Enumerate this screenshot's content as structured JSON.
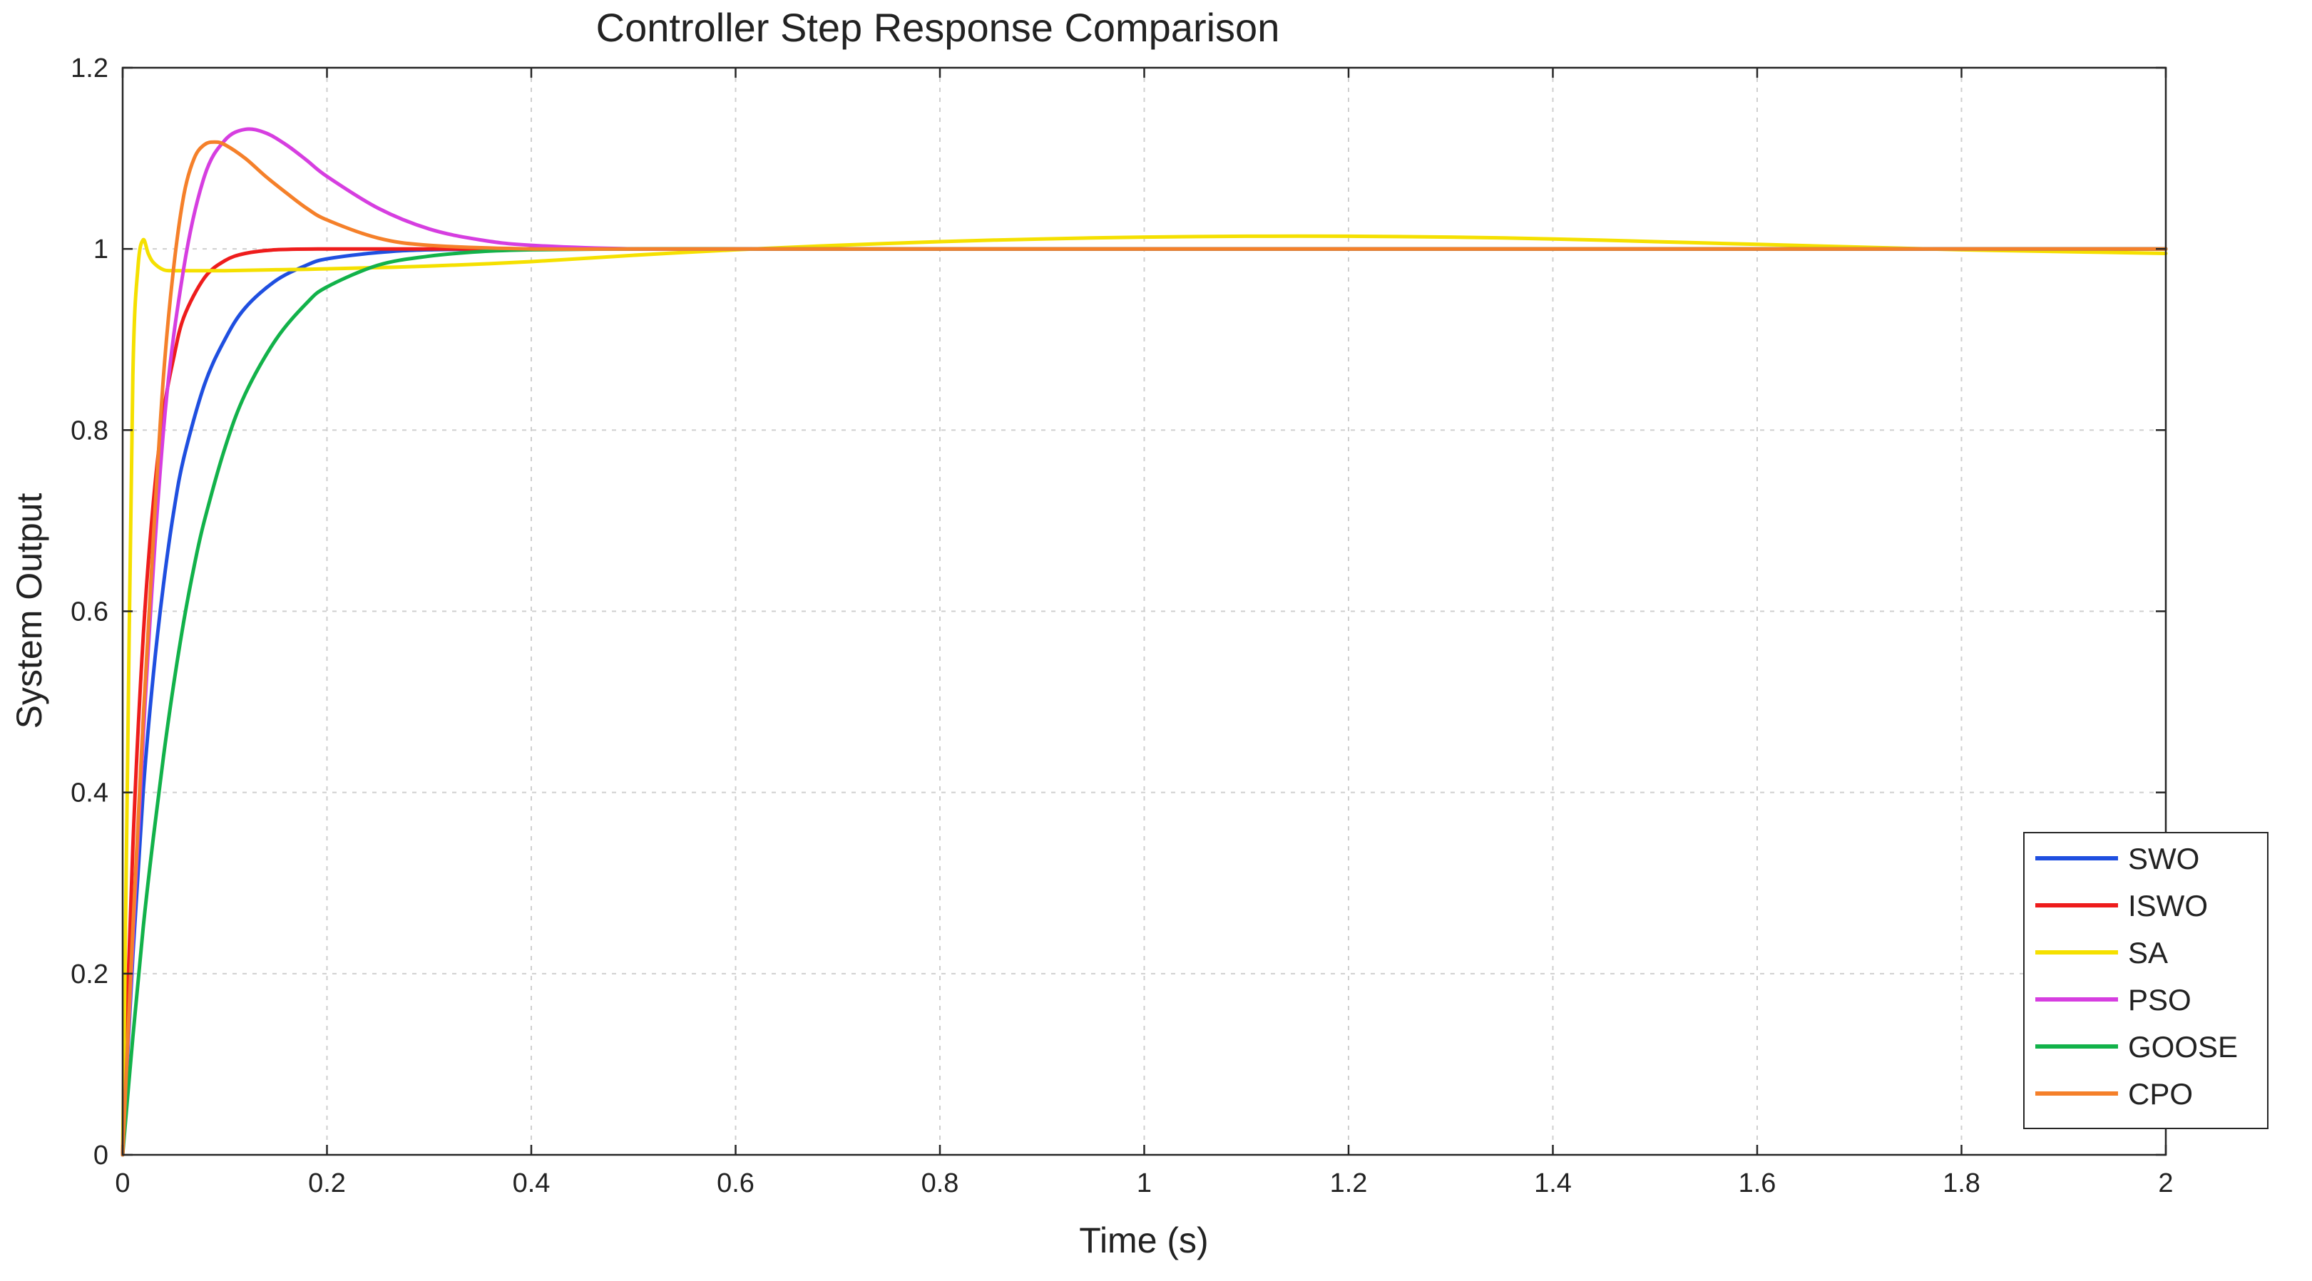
{
  "chart_data": {
    "type": "line",
    "title": "Controller Step Response Comparison",
    "xlabel": "Time (s)",
    "ylabel": "System Output",
    "xlim": [
      0,
      2
    ],
    "ylim": [
      0,
      1.2
    ],
    "xticks": [
      0,
      0.2,
      0.4,
      0.6,
      0.8,
      1,
      1.2,
      1.4,
      1.6,
      1.8,
      2
    ],
    "xtick_labels": [
      "0",
      "0.2",
      "0.4",
      "0.6",
      "0.8",
      "1",
      "1.2",
      "1.4",
      "1.6",
      "1.8",
      "2"
    ],
    "yticks": [
      0,
      0.2,
      0.4,
      0.6,
      0.8,
      1,
      1.2
    ],
    "ytick_labels": [
      "0",
      "0.2",
      "0.4",
      "0.6",
      "0.8",
      "1",
      "1.2"
    ],
    "grid": true,
    "legend_position": "bottom-right",
    "series": [
      {
        "name": "SWO",
        "color": "#1f4fe0",
        "x": [
          0,
          0.01,
          0.02,
          0.03,
          0.04,
          0.05,
          0.06,
          0.08,
          0.1,
          0.12,
          0.15,
          0.18,
          0.2,
          0.25,
          0.3,
          0.4,
          0.5,
          0.6,
          0.8,
          1.0,
          1.5,
          2.0
        ],
        "y": [
          0,
          0.22,
          0.4,
          0.53,
          0.63,
          0.71,
          0.77,
          0.85,
          0.9,
          0.935,
          0.965,
          0.982,
          0.989,
          0.996,
          0.999,
          1.0,
          1.0,
          1.0,
          1.0,
          1.0,
          1.0,
          1.0
        ]
      },
      {
        "name": "ISWO",
        "color": "#ee1c1c",
        "x": [
          0,
          0.01,
          0.02,
          0.03,
          0.04,
          0.05,
          0.06,
          0.08,
          0.1,
          0.12,
          0.15,
          0.2,
          0.25,
          0.3,
          0.5,
          1.0,
          1.5,
          2.0
        ],
        "y": [
          0,
          0.34,
          0.57,
          0.72,
          0.82,
          0.88,
          0.925,
          0.968,
          0.987,
          0.995,
          0.999,
          1.0,
          1.0,
          1.0,
          1.0,
          1.0,
          1.0,
          1.0
        ]
      },
      {
        "name": "SA",
        "color": "#f5e000",
        "x": [
          0,
          0.005,
          0.01,
          0.015,
          0.02,
          0.025,
          0.03,
          0.04,
          0.05,
          0.07,
          0.1,
          0.15,
          0.2,
          0.3,
          0.4,
          0.5,
          0.6,
          0.7,
          0.8,
          0.9,
          1.0,
          1.1,
          1.2,
          1.3,
          1.4,
          1.5,
          1.6,
          1.7,
          1.8,
          1.9,
          2.0
        ],
        "y": [
          0,
          0.45,
          0.86,
          0.98,
          1.01,
          0.995,
          0.985,
          0.977,
          0.976,
          0.976,
          0.976,
          0.977,
          0.978,
          0.981,
          0.986,
          0.993,
          0.999,
          1.004,
          1.008,
          1.011,
          1.013,
          1.014,
          1.014,
          1.013,
          1.011,
          1.008,
          1.005,
          1.002,
          0.999,
          0.997,
          0.995
        ]
      },
      {
        "name": "PSO",
        "color": "#d63ee0",
        "x": [
          0,
          0.02,
          0.04,
          0.06,
          0.08,
          0.1,
          0.12,
          0.14,
          0.16,
          0.18,
          0.2,
          0.25,
          0.3,
          0.35,
          0.4,
          0.5,
          0.6,
          0.8,
          1.0,
          1.5,
          2.0
        ],
        "y": [
          0,
          0.46,
          0.8,
          0.98,
          1.08,
          1.12,
          1.132,
          1.128,
          1.115,
          1.098,
          1.08,
          1.045,
          1.022,
          1.01,
          1.004,
          1.0,
          1.0,
          1.0,
          1.0,
          1.0,
          1.0
        ]
      },
      {
        "name": "GOOSE",
        "color": "#12b24a",
        "x": [
          0,
          0.01,
          0.02,
          0.03,
          0.04,
          0.05,
          0.06,
          0.07,
          0.08,
          0.1,
          0.12,
          0.15,
          0.18,
          0.2,
          0.25,
          0.3,
          0.35,
          0.4,
          0.5,
          0.6,
          0.8,
          1.0,
          1.5,
          2.0
        ],
        "y": [
          0,
          0.13,
          0.25,
          0.35,
          0.44,
          0.52,
          0.59,
          0.65,
          0.7,
          0.78,
          0.84,
          0.9,
          0.94,
          0.958,
          0.982,
          0.992,
          0.997,
          0.999,
          1.0,
          1.0,
          1.0,
          1.0,
          1.0,
          1.0
        ]
      },
      {
        "name": "CPO",
        "color": "#f5802a",
        "x": [
          0,
          0.01,
          0.02,
          0.03,
          0.04,
          0.05,
          0.06,
          0.07,
          0.08,
          0.09,
          0.1,
          0.12,
          0.14,
          0.16,
          0.18,
          0.2,
          0.25,
          0.3,
          0.4,
          0.5,
          0.6,
          0.8,
          1.0,
          1.5,
          2.0
        ],
        "y": [
          0,
          0.25,
          0.48,
          0.68,
          0.86,
          0.98,
          1.06,
          1.1,
          1.115,
          1.118,
          1.115,
          1.1,
          1.08,
          1.062,
          1.045,
          1.032,
          1.012,
          1.004,
          1.0,
          1.0,
          1.0,
          1.0,
          1.0,
          1.0,
          1.0
        ]
      }
    ]
  }
}
